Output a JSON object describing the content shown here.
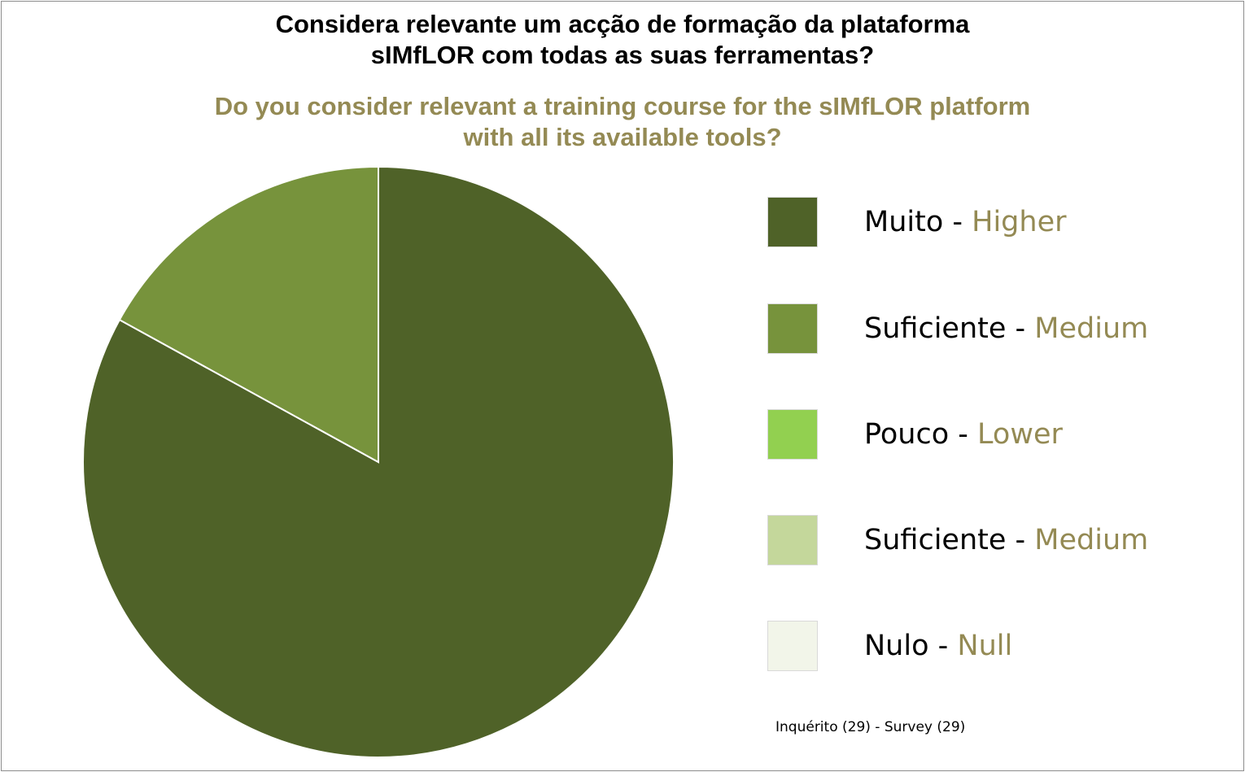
{
  "chart_data": {
    "type": "pie",
    "title_lines": [
      "Considera relevante um acção de formação da plataforma",
      "sIMfLOR com todas as suas ferramentas?"
    ],
    "subtitle_lines": [
      "Do you consider relevant a training course for the sIMfLOR platform",
      "with all its available tools?"
    ],
    "slices": [
      {
        "label_pt": "Muito",
        "label_en": "Higher",
        "value": 83,
        "color": "#4f6228"
      },
      {
        "label_pt": "Suficiente",
        "label_en": "Medium",
        "value": 17,
        "color": "#77933c"
      },
      {
        "label_pt": "Pouco",
        "label_en": "Lower",
        "value": 0,
        "color": "#92d050"
      },
      {
        "label_pt": "Suficiente",
        "label_en": "Medium",
        "value": 0,
        "color": "#c4d79b"
      },
      {
        "label_pt": "Nulo",
        "label_en": "Null",
        "value": 0,
        "color": "#f2f5e9"
      }
    ],
    "legend_separator": " - ",
    "legend_position": "right",
    "footnote": "Inquérito (29) -  Survey (29)"
  }
}
